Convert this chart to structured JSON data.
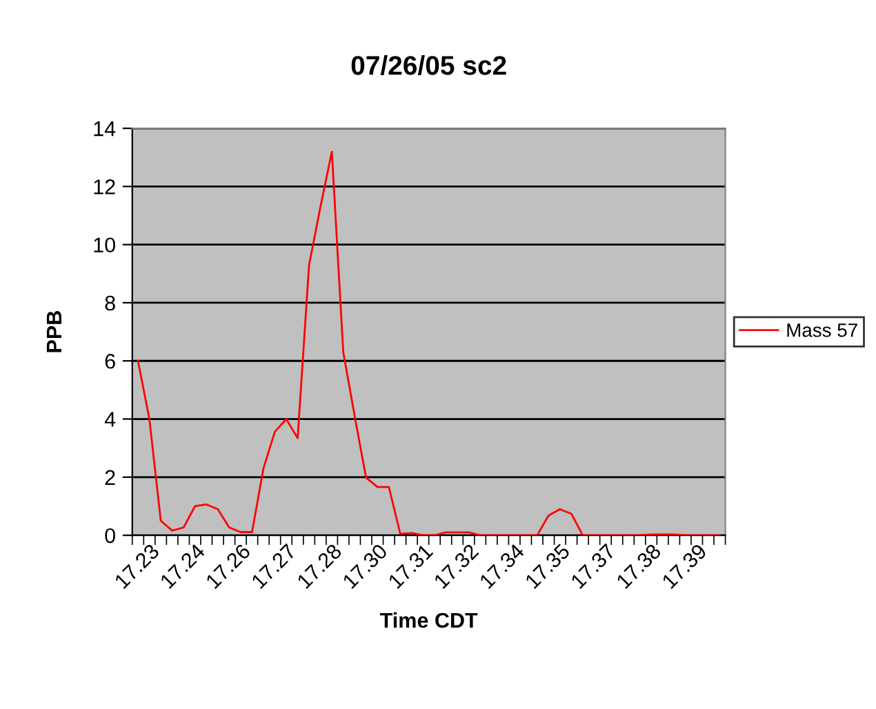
{
  "chart_data": {
    "type": "line",
    "title": "07/26/05 sc2",
    "xlabel": "Time CDT",
    "ylabel": "PPB",
    "categories": [
      "17.23",
      null,
      null,
      null,
      "17.24",
      null,
      null,
      null,
      "17.26",
      null,
      null,
      null,
      "17.27",
      null,
      null,
      null,
      "17.28",
      null,
      null,
      null,
      "17.30",
      null,
      null,
      null,
      "17.31",
      null,
      null,
      null,
      "17.32",
      null,
      null,
      null,
      "17.34",
      null,
      null,
      null,
      "17.35",
      null,
      null,
      null,
      "17.37",
      null,
      null,
      null,
      "17.38",
      null,
      null,
      null,
      "17.39",
      null,
      null,
      null
    ],
    "series": [
      {
        "name": "Mass 57",
        "color": "#ff0000",
        "values": [
          6.0,
          4.0,
          0.5,
          0.16,
          0.27,
          1.0,
          1.06,
          0.9,
          0.27,
          0.11,
          0.11,
          2.3,
          3.56,
          4.0,
          3.34,
          9.29,
          11.3,
          13.2,
          6.3,
          4.1,
          1.98,
          1.66,
          1.66,
          0.05,
          0.08,
          0,
          0,
          0.1,
          0.1,
          0.1,
          0,
          0,
          0,
          0,
          0,
          0,
          0.68,
          0.9,
          0.74,
          0,
          0,
          0,
          0,
          0,
          0,
          0.03,
          0.03,
          0.03,
          0,
          0,
          0,
          0
        ]
      }
    ],
    "ylim": [
      0,
      14
    ],
    "yticks": [
      0,
      2,
      4,
      6,
      8,
      10,
      12,
      14
    ],
    "grid": "y",
    "legend": "right",
    "marker": "none",
    "line_style": "solid"
  }
}
